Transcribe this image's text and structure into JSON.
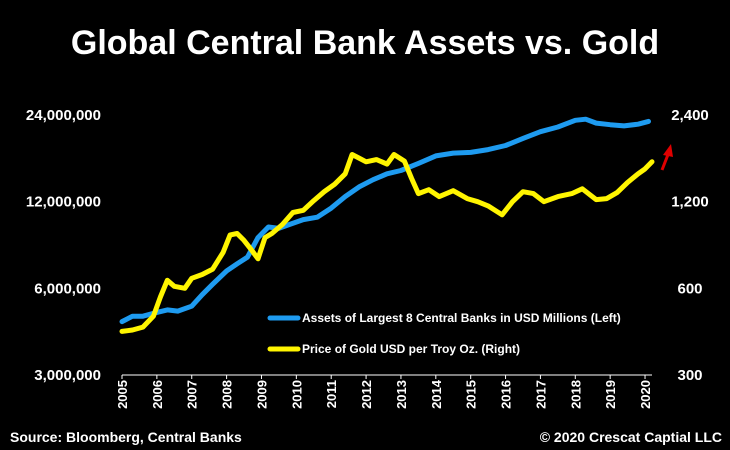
{
  "chart_data": {
    "type": "line",
    "title": "Global Central Bank Assets vs. Gold",
    "source": "Source: Bloomberg, Central Banks",
    "copyright": "© 2020 Crescat Captial LLC",
    "left_axis": {
      "scale": "log",
      "ylim": [
        3000000,
        24000000
      ],
      "ticks": [
        24000000,
        12000000,
        6000000,
        3000000
      ],
      "tick_labels": [
        "24,000,000",
        "12,000,000",
        "6,000,000",
        "3,000,000"
      ]
    },
    "right_axis": {
      "scale": "log",
      "ylim": [
        300,
        2400
      ],
      "ticks": [
        2400,
        1200,
        600,
        300
      ],
      "tick_labels": [
        "2,400",
        "1,200",
        "600",
        "300"
      ]
    },
    "x_axis": {
      "xlim": [
        2005,
        2020.2
      ],
      "ticks": [
        2005,
        2006,
        2007,
        2008,
        2009,
        2010,
        2011,
        2012,
        2013,
        2014,
        2015,
        2016,
        2017,
        2018,
        2019,
        2020
      ],
      "tick_labels": [
        "2005",
        "2006",
        "2007",
        "2008",
        "2009",
        "2010",
        "2011",
        "2012",
        "2013",
        "2014",
        "2015",
        "2016",
        "2017",
        "2018",
        "2019",
        "2020"
      ]
    },
    "legend_position": "bottom-right",
    "series": [
      {
        "name": "Assets of Largest 8 Central Banks in USD Millions (Left)",
        "axis": "left",
        "color": "#1E9BF0",
        "x": [
          2005.0,
          2005.3,
          2005.6,
          2006.0,
          2006.3,
          2006.6,
          2007.0,
          2007.3,
          2007.6,
          2008.0,
          2008.3,
          2008.6,
          2008.9,
          2009.2,
          2009.5,
          2009.8,
          2010.2,
          2010.6,
          2011.0,
          2011.4,
          2011.8,
          2012.2,
          2012.6,
          2013.0,
          2013.5,
          2014.0,
          2014.5,
          2015.0,
          2015.5,
          2016.0,
          2016.5,
          2017.0,
          2017.5,
          2018.0,
          2018.3,
          2018.6,
          2019.0,
          2019.4,
          2019.8,
          2020.1
        ],
        "values": [
          4600000,
          4800000,
          4800000,
          4950000,
          5050000,
          5000000,
          5200000,
          5700000,
          6200000,
          6900000,
          7300000,
          7700000,
          9000000,
          9800000,
          9700000,
          10000000,
          10400000,
          10600000,
          11400000,
          12500000,
          13500000,
          14300000,
          15000000,
          15400000,
          16300000,
          17300000,
          17700000,
          17800000,
          18200000,
          18800000,
          19900000,
          21000000,
          21800000,
          23000000,
          23200000,
          22500000,
          22200000,
          22000000,
          22300000,
          22800000
        ]
      },
      {
        "name": "Price of Gold USD per Troy Oz. (Right)",
        "axis": "right",
        "color": "#FFF500",
        "x": [
          2005.0,
          2005.3,
          2005.6,
          2005.9,
          2006.1,
          2006.3,
          2006.5,
          2006.8,
          2007.0,
          2007.3,
          2007.6,
          2007.9,
          2008.1,
          2008.3,
          2008.5,
          2008.7,
          2008.9,
          2009.1,
          2009.3,
          2009.6,
          2009.9,
          2010.2,
          2010.5,
          2010.8,
          2011.1,
          2011.4,
          2011.6,
          2011.8,
          2012.0,
          2012.3,
          2012.6,
          2012.8,
          2013.1,
          2013.3,
          2013.5,
          2013.8,
          2014.1,
          2014.5,
          2014.9,
          2015.2,
          2015.5,
          2015.9,
          2016.2,
          2016.5,
          2016.8,
          2017.1,
          2017.5,
          2017.9,
          2018.2,
          2018.6,
          2018.9,
          2019.2,
          2019.5,
          2019.8,
          2020.0,
          2020.2
        ],
        "values": [
          425,
          430,
          440,
          480,
          560,
          640,
          610,
          600,
          650,
          670,
          700,
          800,
          920,
          930,
          880,
          820,
          760,
          900,
          930,
          1000,
          1100,
          1120,
          1210,
          1300,
          1380,
          1500,
          1750,
          1700,
          1650,
          1680,
          1620,
          1750,
          1660,
          1450,
          1280,
          1320,
          1250,
          1310,
          1230,
          1200,
          1160,
          1080,
          1200,
          1300,
          1280,
          1200,
          1250,
          1280,
          1330,
          1220,
          1230,
          1290,
          1400,
          1500,
          1560,
          1650
        ]
      }
    ],
    "annotation": {
      "type": "arrow",
      "color": "#E00000",
      "direction": "up"
    }
  }
}
